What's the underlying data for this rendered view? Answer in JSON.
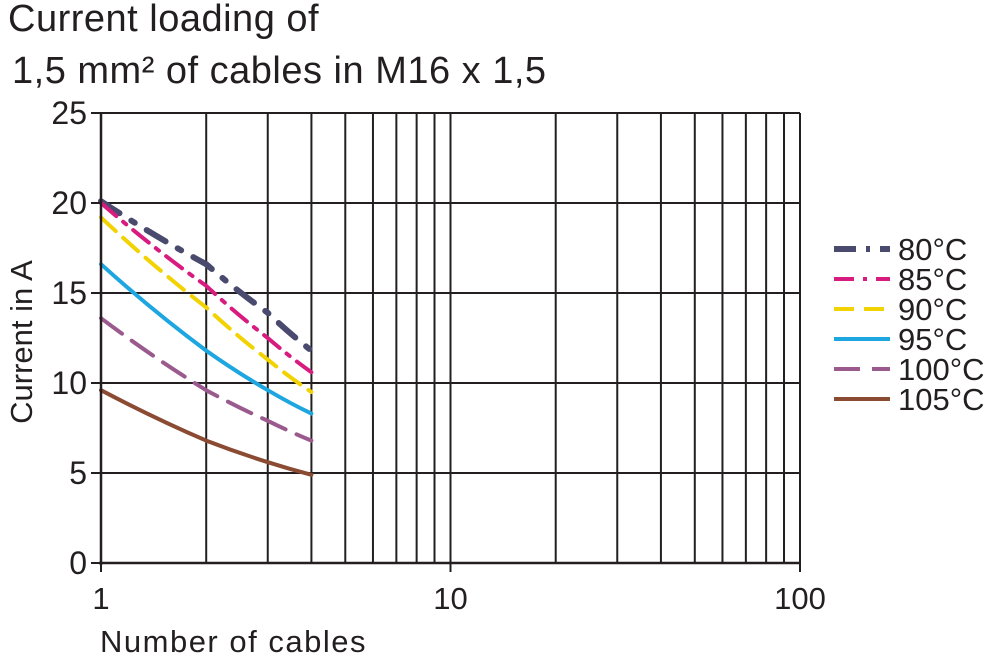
{
  "chart_data": {
    "type": "line",
    "title": [
      "Current loading of",
      "1,5 mm² of cables in M16 x 1,5"
    ],
    "xlabel": "Number of cables",
    "ylabel": "Current in A",
    "xscale": "log",
    "xlim": [
      1,
      100
    ],
    "ylim": [
      0,
      25
    ],
    "xticks": [
      1,
      10,
      100
    ],
    "xtick_labels": [
      "1",
      "10",
      "100"
    ],
    "yticks": [
      0,
      5,
      10,
      15,
      20,
      25
    ],
    "ytick_labels": [
      "0",
      "5",
      "10",
      "15",
      "20",
      "25"
    ],
    "grid": true,
    "legend_position": "right",
    "series": [
      {
        "name": "80°C",
        "color": "#4a4a6e",
        "dash": "dashdot-heavy",
        "x": [
          1,
          2,
          3,
          4
        ],
        "y": [
          20.1,
          16.6,
          13.9,
          11.8
        ]
      },
      {
        "name": "85°C",
        "color": "#d81b7f",
        "dash": "dashdot",
        "x": [
          1,
          2,
          3,
          4
        ],
        "y": [
          20.0,
          15.4,
          12.5,
          10.6
        ]
      },
      {
        "name": "90°C",
        "color": "#f2d200",
        "dash": "dash",
        "x": [
          1,
          2,
          3,
          4
        ],
        "y": [
          19.2,
          14.2,
          11.3,
          9.5
        ]
      },
      {
        "name": "95°C",
        "color": "#1ea6e0",
        "dash": "solid",
        "x": [
          1,
          2,
          3,
          4
        ],
        "y": [
          16.6,
          11.8,
          9.6,
          8.3
        ]
      },
      {
        "name": "100°C",
        "color": "#9b5a8e",
        "dash": "longdash",
        "x": [
          1,
          2,
          3,
          4
        ],
        "y": [
          13.6,
          9.6,
          7.9,
          6.8
        ]
      },
      {
        "name": "105°C",
        "color": "#8b4a32",
        "dash": "solid",
        "x": [
          1,
          2,
          3,
          4
        ],
        "y": [
          9.6,
          6.8,
          5.6,
          4.9
        ]
      }
    ]
  }
}
